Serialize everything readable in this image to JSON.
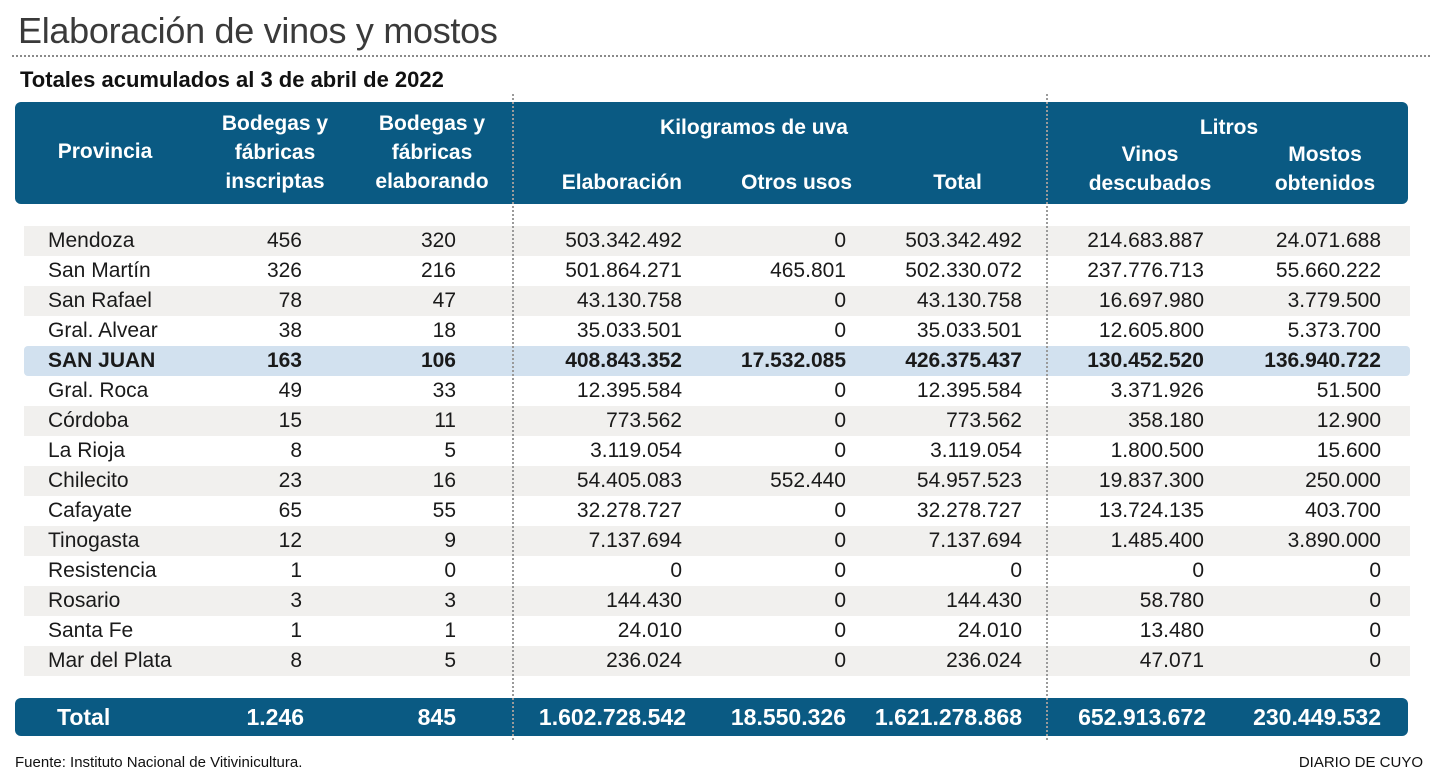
{
  "chart_data": {
    "type": "table",
    "title": "Elaboración de vinos y mostos",
    "subtitle": "Totales acumulados al 3 de abril de 2022",
    "headers": {
      "provincia": "Provincia",
      "inscriptas": [
        "Bodegas y",
        "fábricas",
        "inscriptas"
      ],
      "elaborando": [
        "Bodegas y",
        "fábricas",
        "elaborando"
      ],
      "kg_group": "Kilogramos de uva",
      "kg_elab": "Elaboración",
      "kg_otros": "Otros usos",
      "kg_total": "Total",
      "litros_group": "Litros",
      "vinos": [
        "Vinos",
        "descubados"
      ],
      "mostos": [
        "Mostos",
        "obtenidos"
      ]
    },
    "rows": [
      [
        "Mendoza",
        "456",
        "320",
        "503.342.492",
        "0",
        "503.342.492",
        "214.683.887",
        "24.071.688"
      ],
      [
        "San Martín",
        "326",
        "216",
        "501.864.271",
        "465.801",
        "502.330.072",
        "237.776.713",
        "55.660.222"
      ],
      [
        "San Rafael",
        "78",
        "47",
        "43.130.758",
        "0",
        "43.130.758",
        "16.697.980",
        "3.779.500"
      ],
      [
        "Gral. Alvear",
        "38",
        "18",
        "35.033.501",
        "0",
        "35.033.501",
        "12.605.800",
        "5.373.700"
      ],
      [
        "SAN JUAN",
        "163",
        "106",
        "408.843.352",
        "17.532.085",
        "426.375.437",
        "130.452.520",
        "136.940.722"
      ],
      [
        "Gral. Roca",
        "49",
        "33",
        "12.395.584",
        "0",
        "12.395.584",
        "3.371.926",
        "51.500"
      ],
      [
        "Córdoba",
        "15",
        "11",
        "773.562",
        "0",
        "773.562",
        "358.180",
        "12.900"
      ],
      [
        "La Rioja",
        "8",
        "5",
        "3.119.054",
        "0",
        "3.119.054",
        "1.800.500",
        "15.600"
      ],
      [
        "Chilecito",
        "23",
        "16",
        "54.405.083",
        "552.440",
        "54.957.523",
        "19.837.300",
        "250.000"
      ],
      [
        "Cafayate",
        "65",
        "55",
        "32.278.727",
        "0",
        "32.278.727",
        "13.724.135",
        "403.700"
      ],
      [
        "Tinogasta",
        "12",
        "9",
        "7.137.694",
        "0",
        "7.137.694",
        "1.485.400",
        "3.890.000"
      ],
      [
        "Resistencia",
        "1",
        "0",
        "0",
        "0",
        "0",
        "0",
        "0"
      ],
      [
        "Rosario",
        "3",
        "3",
        "144.430",
        "0",
        "144.430",
        "58.780",
        "0"
      ],
      [
        "Santa Fe",
        "1",
        "1",
        "24.010",
        "0",
        "24.010",
        "13.480",
        "0"
      ],
      [
        "Mar del Plata",
        "8",
        "5",
        "236.024",
        "0",
        "236.024",
        "47.071",
        "0"
      ]
    ],
    "highlight_row": "SAN JUAN",
    "total": [
      "Total",
      "1.246",
      "845",
      "1.602.728.542",
      "18.550.326",
      "1.621.278.868",
      "652.913.672",
      "230.449.532"
    ],
    "source": "Fuente: Instituto Nacional de Vitivinicultura.",
    "credit": "DIARIO DE CUYO",
    "colors": {
      "header_bg": "#0a5a83",
      "row_shade": "#f1f0ee",
      "highlight": "#d2e1ef",
      "text": "#1a1a1a"
    }
  }
}
